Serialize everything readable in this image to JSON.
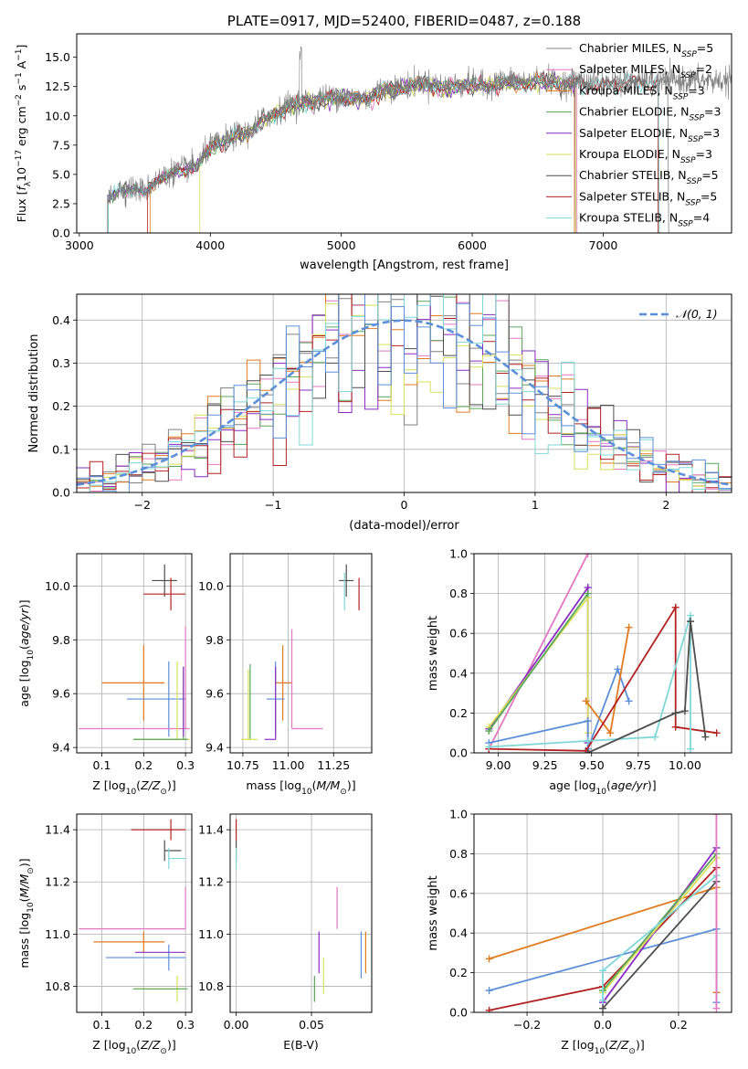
{
  "colors": {
    "Chabrier MILES": "#808080",
    "Salpeter MILES": "#e377c2",
    "Kroupa MILES": "#e07b20",
    "Chabrier ELODIE": "#5aa65a",
    "Salpeter ELODIE": "#8a2bc2",
    "Kroupa ELODIE": "#d7e05a",
    "Chabrier STELIB": "#4d4d4d",
    "Salpeter STELIB": "#b22222",
    "Kroupa STELIB": "#7fd7d7",
    "Gaussian": "#5b8fd9",
    "Blue": "#5b8fd9"
  },
  "chart_data": [
    {
      "id": "spectrum",
      "type": "line",
      "title": "PLATE=0917, MJD=52400, FIBERID=0487, z=0.188",
      "xlabel": "wavelength [Angstrom, rest frame]",
      "ylabel_parts": [
        "Flux [",
        "f",
        "λ",
        "10",
        "−17",
        " erg cm",
        "−2",
        " s",
        "−1",
        " A",
        "−1",
        "]"
      ],
      "xlim": [
        2980,
        7980
      ],
      "ylim": [
        0,
        17
      ],
      "xticks": [
        3000,
        4000,
        5000,
        6000,
        7000
      ],
      "yticks": [
        0.0,
        2.5,
        5.0,
        7.5,
        10.0,
        12.5,
        15.0
      ],
      "legend": [
        {
          "label": "Chabrier MILES",
          "nssp": "5"
        },
        {
          "label": "Salpeter MILES",
          "nssp": "2"
        },
        {
          "label": "Kroupa MILES",
          "nssp": "3"
        },
        {
          "label": "Chabrier ELODIE",
          "nssp": "3"
        },
        {
          "label": "Salpeter ELODIE",
          "nssp": "3"
        },
        {
          "label": "Kroupa ELODIE",
          "nssp": "3"
        },
        {
          "label": "Chabrier STELIB",
          "nssp": "5"
        },
        {
          "label": "Salpeter STELIB",
          "nssp": "5"
        },
        {
          "label": "Kroupa STELIB",
          "nssp": "4"
        }
      ],
      "continuum": [
        [
          3220,
          3.0
        ],
        [
          3300,
          3.7
        ],
        [
          3400,
          3.8
        ],
        [
          3500,
          3.6
        ],
        [
          3600,
          4.6
        ],
        [
          3700,
          5.2
        ],
        [
          3800,
          5.5
        ],
        [
          3900,
          5.8
        ],
        [
          4000,
          7.4
        ],
        [
          4100,
          7.8
        ],
        [
          4200,
          8.4
        ],
        [
          4300,
          8.6
        ],
        [
          4400,
          9.8
        ],
        [
          4500,
          10.3
        ],
        [
          4600,
          11.0
        ],
        [
          4700,
          11.2
        ],
        [
          4800,
          11.4
        ],
        [
          4900,
          11.6
        ],
        [
          5000,
          11.7
        ],
        [
          5100,
          11.6
        ],
        [
          5200,
          11.5
        ],
        [
          5300,
          12.3
        ],
        [
          5400,
          12.4
        ],
        [
          5500,
          12.6
        ],
        [
          5600,
          12.9
        ],
        [
          5700,
          12.8
        ],
        [
          5800,
          12.5
        ],
        [
          5900,
          12.7
        ],
        [
          6000,
          12.8
        ],
        [
          6100,
          12.6
        ],
        [
          6200,
          12.9
        ],
        [
          6300,
          13.0
        ],
        [
          6400,
          12.9
        ],
        [
          6500,
          13.1
        ],
        [
          6600,
          13.0
        ],
        [
          6700,
          12.8
        ],
        [
          6800,
          13.0
        ],
        [
          6900,
          12.8
        ],
        [
          7000,
          12.7
        ],
        [
          7100,
          12.9
        ],
        [
          7200,
          13.0
        ],
        [
          7300,
          12.9
        ],
        [
          7400,
          13.0
        ],
        [
          7500,
          13.0
        ]
      ],
      "model_start": {
        "Chabrier MILES": 3220,
        "Salpeter MILES": 3220,
        "Kroupa MILES": 3540,
        "Chabrier ELODIE": 3220,
        "Salpeter ELODIE": 3220,
        "Kroupa ELODIE": 3920,
        "Chabrier STELIB": 3220,
        "Salpeter STELIB": 3520,
        "Kroupa STELIB": 3220
      },
      "model_end": {
        "Chabrier MILES": 7500,
        "Salpeter MILES": 6800,
        "Kroupa MILES": 6780,
        "Chabrier ELODIE": 6790,
        "Salpeter ELODIE": 6790,
        "Kroupa ELODIE": 6790,
        "Chabrier STELIB": 7420,
        "Salpeter STELIB": 7420,
        "Kroupa STELIB": 7430
      }
    },
    {
      "id": "residuals",
      "type": "histogram",
      "xlabel": "(data-model)/error",
      "ylabel": "Normed distribution",
      "xlim": [
        -2.5,
        2.5
      ],
      "ylim": [
        0,
        0.46
      ],
      "xticks": [
        -2,
        -1,
        0,
        1,
        2
      ],
      "yticks": [
        0.0,
        0.1,
        0.2,
        0.3,
        0.4
      ],
      "gaussian_label": "𝒩(0, 1)"
    },
    {
      "id": "age_vs_Z",
      "type": "errorbar",
      "xlabel": "Z [log10(Z/Z⊙)]",
      "ylabel": "age [log10(age/yr)]",
      "xlim": [
        0.04,
        0.315
      ],
      "ylim": [
        9.38,
        10.12
      ],
      "xticks": [
        0.1,
        0.2,
        0.3
      ],
      "yticks": [
        9.4,
        9.6,
        9.8,
        10.0
      ],
      "points": [
        {
          "c": "Chabrier STELIB",
          "x": 0.25,
          "xe": [
            0.03,
            0.03
          ],
          "y": 10.02,
          "ye": [
            0.06,
            0.06
          ]
        },
        {
          "c": "Salpeter STELIB",
          "x": 0.265,
          "xe": [
            0.065,
            0.035
          ],
          "y": 9.97,
          "ye": [
            0.06,
            0.06
          ]
        },
        {
          "c": "Kroupa MILES",
          "x": 0.2,
          "xe": [
            0.1,
            0.05
          ],
          "y": 9.64,
          "ye": [
            0.14,
            0.14
          ]
        },
        {
          "c": "Blue",
          "x": 0.26,
          "xe": [
            0.1,
            0.04
          ],
          "y": 9.58,
          "ye": [
            0.14,
            0.14
          ]
        },
        {
          "c": "Salpeter MILES",
          "x": 0.3,
          "xe": [
            0.255,
            0.01
          ],
          "y": 9.47,
          "ye": [
            0.0,
            0.38
          ]
        },
        {
          "c": "Kroupa ELODIE",
          "x": 0.28,
          "xe": [
            0.1,
            0.03
          ],
          "y": 9.43,
          "ye": [
            0.0,
            0.29
          ]
        },
        {
          "c": "Chabrier ELODIE",
          "x": 0.295,
          "xe": [
            0.12,
            0.01
          ],
          "y": 9.43,
          "ye": [
            0.0,
            0.27
          ]
        },
        {
          "c": "Salpeter ELODIE",
          "x": 0.295,
          "xe": [
            0.0,
            0.0
          ],
          "y": 9.58,
          "ye": [
            0.14,
            0.12
          ]
        }
      ]
    },
    {
      "id": "age_vs_mass",
      "type": "errorbar",
      "xlabel": "mass [log10(M/M⊙)]",
      "ylabel": "",
      "xlim": [
        10.68,
        11.46
      ],
      "ylim": [
        9.38,
        10.12
      ],
      "xticks": [
        10.75,
        11.0,
        11.25
      ],
      "yticks": [
        9.4,
        9.6,
        9.8,
        10.0
      ],
      "points": [
        {
          "c": "Chabrier STELIB",
          "x": 11.32,
          "xe": [
            0.04,
            0.04
          ],
          "y": 10.02,
          "ye": [
            0.06,
            0.06
          ]
        },
        {
          "c": "Salpeter STELIB",
          "x": 11.39,
          "xe": [
            0.0,
            0.0
          ],
          "y": 9.97,
          "ye": [
            0.06,
            0.06
          ]
        },
        {
          "c": "Kroupa STELIB",
          "x": 11.31,
          "xe": [
            0.0,
            0.0
          ],
          "y": 9.99,
          "ye": [
            0.08,
            0.06
          ]
        },
        {
          "c": "Kroupa MILES",
          "x": 10.97,
          "xe": [
            0.04,
            0.05
          ],
          "y": 9.64,
          "ye": [
            0.14,
            0.14
          ]
        },
        {
          "c": "Blue",
          "x": 10.93,
          "xe": [
            0.05,
            0.05
          ],
          "y": 9.58,
          "ye": [
            0.14,
            0.14
          ]
        },
        {
          "c": "Salpeter MILES",
          "x": 11.02,
          "xe": [
            0.0,
            0.17
          ],
          "y": 9.47,
          "ye": [
            0.0,
            0.37
          ]
        },
        {
          "c": "Salpeter ELODIE",
          "x": 10.93,
          "xe": [
            0.06,
            0.0
          ],
          "y": 9.43,
          "ye": [
            0.0,
            0.27
          ]
        },
        {
          "c": "Chabrier ELODIE",
          "x": 10.79,
          "xe": [
            0.0,
            0.0
          ],
          "y": 9.43,
          "ye": [
            0.0,
            0.28
          ]
        },
        {
          "c": "Kroupa ELODIE",
          "x": 10.78,
          "xe": [
            0.04,
            0.05
          ],
          "y": 9.43,
          "ye": [
            0.0,
            0.26
          ]
        }
      ]
    },
    {
      "id": "weight_vs_age",
      "type": "line",
      "xlabel": "age [log10(age/yr)]",
      "ylabel": "mass weight",
      "xlim": [
        8.87,
        10.25
      ],
      "ylim": [
        0,
        1
      ],
      "xticks": [
        9.0,
        9.25,
        9.5,
        9.75,
        10.0
      ],
      "yticks": [
        0.0,
        0.2,
        0.4,
        0.6,
        0.8,
        1.0
      ],
      "series": [
        {
          "c": "Salpeter MILES",
          "x": [
            8.95,
            9.48
          ],
          "y": [
            0.02,
            1.0
          ]
        },
        {
          "c": "Salpeter ELODIE",
          "x": [
            8.95,
            9.48,
            9.48
          ],
          "y": [
            0.12,
            0.83,
            0.05
          ]
        },
        {
          "c": "Kroupa ELODIE",
          "x": [
            8.95,
            9.48,
            9.48
          ],
          "y": [
            0.13,
            0.78,
            0.1
          ]
        },
        {
          "c": "Blue",
          "x": [
            8.95,
            9.48,
            9.48,
            9.64,
            9.7
          ],
          "y": [
            0.05,
            0.16,
            0.02,
            0.42,
            0.26
          ]
        },
        {
          "c": "Kroupa MILES",
          "x": [
            9.47,
            9.6,
            9.7
          ],
          "y": [
            0.26,
            0.1,
            0.63
          ]
        },
        {
          "c": "Salpeter STELIB",
          "x": [
            8.95,
            9.47,
            9.95,
            9.95,
            10.17
          ],
          "y": [
            0.02,
            0.01,
            0.73,
            0.13,
            0.1
          ]
        },
        {
          "c": "Kroupa STELIB",
          "x": [
            8.95,
            9.48,
            9.84,
            10.03,
            10.03
          ],
          "y": [
            0.03,
            0.06,
            0.08,
            0.69,
            0.02
          ]
        },
        {
          "c": "Chabrier STELIB",
          "x": [
            9.48,
            9.95,
            10.0,
            10.03,
            10.11
          ],
          "y": [
            0.0,
            0.2,
            0.21,
            0.66,
            0.08
          ]
        },
        {
          "c": "Chabrier ELODIE",
          "x": [
            8.95,
            9.48
          ],
          "y": [
            0.11,
            0.8
          ]
        }
      ]
    },
    {
      "id": "mass_vs_Z",
      "type": "errorbar",
      "xlabel": "Z [log10(Z/Z⊙)]",
      "ylabel": "mass [log10(M/M⊙)]",
      "xlim": [
        0.04,
        0.315
      ],
      "ylim": [
        10.7,
        11.46
      ],
      "xticks": [
        0.1,
        0.2,
        0.3
      ],
      "yticks": [
        10.8,
        11.0,
        11.2,
        11.4
      ],
      "points": [
        {
          "c": "Salpeter STELIB",
          "x": 0.265,
          "xe": [
            0.095,
            0.035
          ],
          "y": 11.4,
          "ye": [
            0.04,
            0.04
          ]
        },
        {
          "c": "Chabrier STELIB",
          "x": 0.25,
          "xe": [
            0.0,
            0.04
          ],
          "y": 11.32,
          "ye": [
            0.04,
            0.04
          ]
        },
        {
          "c": "Kroupa STELIB",
          "x": 0.26,
          "xe": [
            0.0,
            0.04
          ],
          "y": 11.29,
          "ye": [
            0.04,
            0.04
          ]
        },
        {
          "c": "Salpeter MILES",
          "x": 0.3,
          "xe": [
            0.255,
            0.0
          ],
          "y": 11.02,
          "ye": [
            0.0,
            0.16
          ]
        },
        {
          "c": "Kroupa MILES",
          "x": 0.2,
          "xe": [
            0.12,
            0.05
          ],
          "y": 10.97,
          "ye": [
            0.04,
            0.04
          ]
        },
        {
          "c": "Blue",
          "x": 0.26,
          "xe": [
            0.15,
            0.04
          ],
          "y": 10.91,
          "ye": [
            0.05,
            0.05
          ]
        },
        {
          "c": "Salpeter ELODIE",
          "x": 0.27,
          "xe": [
            0.09,
            0.03
          ],
          "y": 10.93,
          "ye": [
            0.0,
            0.0
          ]
        },
        {
          "c": "Kroupa ELODIE",
          "x": 0.28,
          "xe": [
            0.1,
            0.02
          ],
          "y": 10.79,
          "ye": [
            0.05,
            0.05
          ]
        },
        {
          "c": "Chabrier ELODIE",
          "x": 0.295,
          "xe": [
            0.12,
            0.01
          ],
          "y": 10.79,
          "ye": [
            0.0,
            0.0
          ]
        }
      ]
    },
    {
      "id": "mass_vs_ebv",
      "type": "errorbar",
      "xlabel": "E(B-V)",
      "ylabel": "",
      "xlim": [
        -0.004,
        0.09
      ],
      "ylim": [
        10.7,
        11.46
      ],
      "xticks": [
        0.0,
        0.05
      ],
      "yticks": [
        10.8,
        11.0,
        11.2,
        11.4
      ],
      "points": [
        {
          "c": "Salpeter STELIB",
          "x": 0.0,
          "xe": [
            0,
            0
          ],
          "y": 11.4,
          "ye": [
            0.04,
            0.04
          ]
        },
        {
          "c": "Chabrier STELIB",
          "x": 0.0,
          "xe": [
            0,
            0
          ],
          "y": 11.32,
          "ye": [
            0.04,
            0.04
          ]
        },
        {
          "c": "Kroupa STELIB",
          "x": 0.0,
          "xe": [
            0,
            0
          ],
          "y": 11.29,
          "ye": [
            0.04,
            0.04
          ]
        },
        {
          "c": "Salpeter MILES",
          "x": 0.067,
          "xe": [
            0,
            0
          ],
          "y": 11.02,
          "ye": [
            0.0,
            0.16
          ]
        },
        {
          "c": "Salpeter ELODIE",
          "x": 0.055,
          "xe": [
            0,
            0
          ],
          "y": 10.93,
          "ye": [
            0.08,
            0.08
          ]
        },
        {
          "c": "Kroupa ELODIE",
          "x": 0.058,
          "xe": [
            0,
            0
          ],
          "y": 10.84,
          "ye": [
            0.07,
            0.07
          ]
        },
        {
          "c": "Chabrier ELODIE",
          "x": 0.052,
          "xe": [
            0,
            0
          ],
          "y": 10.79,
          "ye": [
            0.05,
            0.05
          ]
        },
        {
          "c": "Blue",
          "x": 0.083,
          "xe": [
            0,
            0
          ],
          "y": 10.92,
          "ye": [
            0.09,
            0.09
          ]
        },
        {
          "c": "Kroupa MILES",
          "x": 0.086,
          "xe": [
            0,
            0
          ],
          "y": 10.93,
          "ye": [
            0.08,
            0.08
          ]
        }
      ]
    },
    {
      "id": "weight_vs_Z",
      "type": "line",
      "xlabel": "Z [log10(Z/Z⊙)]",
      "ylabel": "mass weight",
      "xlim": [
        -0.34,
        0.34
      ],
      "ylim": [
        0,
        1
      ],
      "xticks": [
        -0.2,
        0.0,
        0.2
      ],
      "yticks": [
        0.0,
        0.2,
        0.4,
        0.6,
        0.8,
        1.0
      ],
      "series": [
        {
          "c": "Kroupa MILES",
          "x": [
            -0.3,
            0.3,
            0.3
          ],
          "y": [
            0.27,
            0.63,
            0.1
          ]
        },
        {
          "c": "Blue",
          "x": [
            -0.3,
            0.3,
            0.3
          ],
          "y": [
            0.11,
            0.42,
            0.05
          ]
        },
        {
          "c": "Salpeter STELIB",
          "x": [
            -0.3,
            0.0,
            0.3
          ],
          "y": [
            0.01,
            0.13,
            0.73
          ]
        },
        {
          "c": "Salpeter ELODIE",
          "x": [
            0.0,
            0.3
          ],
          "y": [
            0.05,
            0.83
          ]
        },
        {
          "c": "Kroupa ELODIE",
          "x": [
            0.0,
            0.3
          ],
          "y": [
            0.1,
            0.78
          ]
        },
        {
          "c": "Chabrier ELODIE",
          "x": [
            0.0,
            0.3
          ],
          "y": [
            0.11,
            0.8
          ]
        },
        {
          "c": "Kroupa STELIB",
          "x": [
            0.0,
            0.0,
            0.3
          ],
          "y": [
            0.06,
            0.21,
            0.69
          ]
        },
        {
          "c": "Chabrier STELIB",
          "x": [
            0.0,
            0.3
          ],
          "y": [
            0.02,
            0.66
          ]
        },
        {
          "c": "Salpeter MILES",
          "x": [
            0.3,
            0.3
          ],
          "y": [
            0.02,
            1.0
          ]
        }
      ]
    }
  ]
}
